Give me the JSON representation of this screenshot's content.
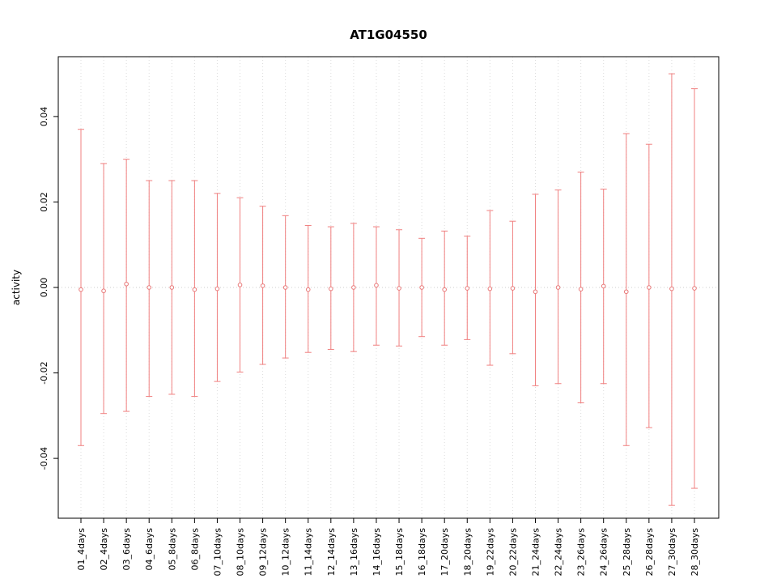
{
  "title": "AT1G04550",
  "chart_data": {
    "type": "scatter",
    "title": "AT1G04550",
    "xlabel": "",
    "ylabel": "activity",
    "ylim": [
      -0.054,
      0.054
    ],
    "yticks": [
      -0.04,
      -0.02,
      0,
      0.02,
      0.04
    ],
    "ytick_labels": [
      "-0.04",
      "-0.02",
      "0.00",
      "0.02",
      "0.04"
    ],
    "grid": "dotted vertical line per category plus dotted horizontal zero line",
    "legend": "none",
    "categories": [
      "01_4days",
      "02_4days",
      "03_6days",
      "04_6days",
      "05_8days",
      "06_8days",
      "07_10days",
      "08_10days",
      "09_12days",
      "10_12days",
      "11_14days",
      "12_14days",
      "13_16days",
      "14_16days",
      "15_18days",
      "16_18days",
      "17_20days",
      "18_20days",
      "19_22days",
      "20_22days",
      "21_24days",
      "22_24days",
      "23_26days",
      "24_26days",
      "25_28days",
      "26_28days",
      "27_30days",
      "28_30days"
    ],
    "series": [
      {
        "name": "activity mean with error bars",
        "center": [
          -0.0005,
          -0.0008,
          0.0008,
          0.0,
          0.0,
          -0.0005,
          -0.0003,
          0.0006,
          0.0004,
          0.0,
          -0.0005,
          -0.0003,
          0.0,
          0.0005,
          -0.0002,
          0.0,
          -0.0005,
          -0.0002,
          -0.0003,
          -0.0002,
          -0.001,
          0.0,
          -0.0004,
          0.0003,
          -0.001,
          0.0,
          -0.0003,
          -0.0002
        ],
        "upper": [
          0.037,
          0.029,
          0.03,
          0.025,
          0.025,
          0.025,
          0.022,
          0.021,
          0.019,
          0.0168,
          0.0145,
          0.0142,
          0.015,
          0.0142,
          0.0135,
          0.0115,
          0.0132,
          0.012,
          0.018,
          0.0155,
          0.0218,
          0.0228,
          0.027,
          0.023,
          0.036,
          0.0335,
          0.05,
          0.0465
        ],
        "lower": [
          -0.037,
          -0.0295,
          -0.029,
          -0.0255,
          -0.025,
          -0.0255,
          -0.022,
          -0.0198,
          -0.018,
          -0.0165,
          -0.0152,
          -0.0145,
          -0.015,
          -0.0135,
          -0.0137,
          -0.0115,
          -0.0135,
          -0.0122,
          -0.0182,
          -0.0155,
          -0.023,
          -0.0225,
          -0.027,
          -0.0225,
          -0.037,
          -0.0328,
          -0.051,
          -0.047
        ]
      }
    ],
    "colors": {
      "errorbar": "#f08080",
      "point_stroke": "#e87878",
      "point_fill": "#ffffff",
      "grid": "#dcdcdc",
      "zero_line": "#cccccc",
      "axis": "#000000"
    }
  }
}
